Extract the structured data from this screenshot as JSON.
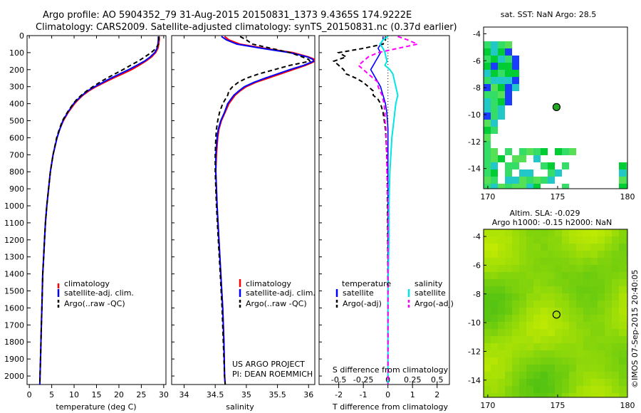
{
  "titles": {
    "line1": "Argo profile: AO 5904352_79 31-Aug-2015 20150831_1373 9.4365S 174.9222E",
    "line2": "Climatology: CARS2009. Satellite-adjusted climatology: synTS_20150831.nc (0.37d earlier)"
  },
  "annotations": {
    "project": "US ARGO PROJECT",
    "pi": "PI: DEAN ROEMMICH",
    "copyright": "©IMOS 07-Sep-2015 20:40:05"
  },
  "colors": {
    "climatology": "#ff0000",
    "satellite": "#0000ff",
    "argo": "#000000",
    "s_satellite": "#00e5e5",
    "s_argo": "#ff00ff"
  },
  "depth_axis": {
    "range": [
      0,
      2050
    ],
    "ticks": [
      0,
      100,
      200,
      300,
      400,
      500,
      600,
      700,
      800,
      900,
      1000,
      1100,
      1200,
      1300,
      1400,
      1500,
      1600,
      1700,
      1800,
      1900,
      2000
    ]
  },
  "chart_data": [
    {
      "type": "line",
      "title": "temperature profile",
      "xlabel": "temperature (deg C)",
      "xlim": [
        -0.5,
        30.5
      ],
      "ylim": [
        0,
        2050
      ],
      "xticks": [
        0,
        5,
        10,
        15,
        20,
        25,
        30
      ],
      "legend": [
        "climatology",
        "satellite-adj. clim.",
        "Argo(..raw -QC)"
      ],
      "depth": [
        5,
        25,
        50,
        75,
        100,
        125,
        150,
        175,
        200,
        225,
        250,
        275,
        300,
        325,
        350,
        375,
        400,
        450,
        500,
        550,
        600,
        700,
        800,
        900,
        1000,
        1100,
        1200,
        1300,
        1400,
        1500,
        1600,
        1700,
        1800,
        1900,
        2000,
        2050
      ],
      "series": [
        {
          "name": "climatology",
          "values": [
            29.0,
            29.0,
            28.9,
            28.7,
            28.2,
            27.3,
            26.0,
            24.5,
            22.8,
            20.8,
            18.7,
            16.8,
            14.9,
            13.3,
            12.0,
            11.0,
            10.1,
            8.7,
            7.6,
            6.8,
            6.2,
            5.3,
            4.7,
            4.3,
            3.9,
            3.6,
            3.4,
            3.2,
            3.0,
            2.9,
            2.8,
            2.7,
            2.6,
            2.5,
            2.4,
            2.35
          ]
        },
        {
          "name": "satellite-adj. clim.",
          "values": [
            28.8,
            28.8,
            28.7,
            28.5,
            28.0,
            27.0,
            25.7,
            24.0,
            22.2,
            20.2,
            18.2,
            16.4,
            14.6,
            13.0,
            11.8,
            10.8,
            9.9,
            8.6,
            7.5,
            6.8,
            6.2,
            5.3,
            4.7,
            4.3,
            3.9,
            3.6,
            3.4,
            3.2,
            3.0,
            2.9,
            2.8,
            2.7,
            2.6,
            2.5,
            2.4,
            2.35
          ]
        },
        {
          "name": "Argo(..raw -QC)",
          "values": [
            28.9,
            28.9,
            28.8,
            28.3,
            27.2,
            25.8,
            24.3,
            22.6,
            20.9,
            19.1,
            17.3,
            15.7,
            14.2,
            12.8,
            11.6,
            10.6,
            9.8,
            8.5,
            7.4,
            6.7,
            6.1,
            5.3,
            4.7,
            4.3,
            3.9,
            3.6,
            3.4,
            3.2,
            3.0,
            2.9,
            2.8,
            2.7,
            2.6,
            2.5,
            2.4,
            2.35
          ]
        }
      ]
    },
    {
      "type": "line",
      "title": "salinity profile",
      "xlabel": "salinity",
      "xlim": [
        33.8,
        36.1
      ],
      "ylim": [
        0,
        2050
      ],
      "xticks": [
        34,
        34.5,
        35,
        35.5,
        36
      ],
      "legend": [
        "climatology",
        "satellite-adj. clim.",
        "Argo(..raw -QC)"
      ],
      "depth": [
        5,
        25,
        50,
        75,
        100,
        125,
        140,
        150,
        160,
        175,
        200,
        225,
        250,
        275,
        300,
        325,
        350,
        375,
        400,
        450,
        500,
        550,
        600,
        700,
        800,
        900,
        1000,
        1200,
        1400,
        1600,
        1800,
        2000,
        2050
      ],
      "series": [
        {
          "name": "climatology",
          "values": [
            34.65,
            34.72,
            34.9,
            35.3,
            35.75,
            36.0,
            36.1,
            36.1,
            36.05,
            35.95,
            35.75,
            35.55,
            35.35,
            35.15,
            35.0,
            34.9,
            34.82,
            34.77,
            34.72,
            34.66,
            34.6,
            34.56,
            34.54,
            34.52,
            34.51,
            34.52,
            34.53,
            34.56,
            34.59,
            34.62,
            34.64,
            34.65,
            34.66
          ]
        },
        {
          "name": "satellite-adj. clim.",
          "values": [
            34.6,
            34.68,
            34.85,
            35.25,
            35.7,
            35.98,
            36.07,
            36.08,
            36.02,
            35.92,
            35.7,
            35.5,
            35.3,
            35.12,
            34.97,
            34.88,
            34.8,
            34.75,
            34.7,
            34.65,
            34.59,
            34.55,
            34.53,
            34.51,
            34.51,
            34.52,
            34.53,
            34.56,
            34.59,
            34.62,
            34.64,
            34.65,
            34.66
          ]
        },
        {
          "name": "Argo(..raw -QC)",
          "values": [
            34.9,
            35.0,
            35.1,
            35.4,
            35.7,
            35.9,
            36.0,
            36.02,
            35.9,
            35.7,
            35.45,
            35.2,
            35.0,
            34.87,
            34.78,
            34.72,
            34.7,
            34.66,
            34.62,
            34.57,
            34.54,
            34.52,
            34.51,
            34.5,
            34.5,
            34.51,
            34.52,
            34.55,
            34.58,
            34.61,
            34.63,
            34.65,
            34.66
          ]
        }
      ]
    },
    {
      "type": "line",
      "title": "difference from climatology",
      "xlabel": "T difference from climatology",
      "s_axis_label": "S difference from climatology",
      "xlim": [
        -2.8,
        2.5
      ],
      "ylim": [
        0,
        2050
      ],
      "xticks": [
        -2,
        -1,
        0,
        1,
        2
      ],
      "s_xlim": [
        -0.7,
        0.625
      ],
      "s_xticks": [
        -0.5,
        -0.25,
        0,
        0.25,
        0.5
      ],
      "s_xticklabels": [
        "-0.5",
        "-0.25",
        "0",
        "0.25",
        "0.5"
      ],
      "legend_headers": [
        "temperature",
        "salinity"
      ],
      "legend": [
        "satellite",
        "Argo(-adj)",
        "satellite",
        "Argo(-adj)"
      ],
      "depth": [
        5,
        25,
        50,
        75,
        100,
        125,
        150,
        175,
        200,
        225,
        250,
        275,
        300,
        325,
        350,
        375,
        400,
        450,
        500,
        550,
        600,
        700,
        800,
        1000,
        1200,
        1500,
        2000,
        2050
      ],
      "series": [
        {
          "name": "T satellite",
          "axis": "T",
          "values": [
            -0.2,
            -0.2,
            -0.3,
            -0.4,
            -0.3,
            -0.4,
            -0.5,
            -0.6,
            -0.7,
            -0.6,
            -0.5,
            -0.4,
            -0.3,
            -0.25,
            -0.2,
            -0.15,
            -0.1,
            -0.05,
            -0.02,
            0,
            0,
            0,
            0,
            0,
            0,
            0,
            0,
            0
          ]
        },
        {
          "name": "T Argo(-adj)",
          "axis": "T",
          "values": [
            -0.1,
            -0.1,
            -0.2,
            -1.0,
            -2.0,
            -1.7,
            -2.2,
            -2.0,
            -1.8,
            -1.7,
            -1.3,
            -1.0,
            -0.8,
            -0.6,
            -0.6,
            -0.4,
            -0.3,
            -0.2,
            -0.15,
            -0.1,
            -0.08,
            -0.05,
            -0.03,
            -0.02,
            -0.01,
            0,
            0,
            0
          ]
        },
        {
          "name": "S satellite",
          "axis": "S",
          "values": [
            0.0,
            -0.05,
            -0.08,
            -0.05,
            -0.03,
            -0.02,
            -0.01,
            -0.03,
            0.02,
            0.05,
            0.06,
            0.07,
            0.08,
            0.09,
            0.1,
            0.09,
            0.08,
            0.07,
            0.06,
            0.05,
            0.04,
            0.03,
            0.02,
            0.01,
            0.01,
            0,
            0,
            0
          ]
        },
        {
          "name": "S Argo(-adj)",
          "axis": "S",
          "values": [
            0.1,
            0.2,
            0.3,
            0.1,
            -0.1,
            -0.2,
            -0.25,
            -0.3,
            -0.25,
            -0.2,
            -0.15,
            -0.1,
            -0.1,
            -0.08,
            -0.06,
            -0.05,
            -0.04,
            -0.03,
            -0.03,
            -0.02,
            -0.02,
            -0.01,
            -0.01,
            0,
            0,
            0,
            0,
            0
          ]
        }
      ]
    }
  ],
  "maps": {
    "sst": {
      "title": "sat. SST: NaN Argo: 28.5",
      "lon_range": [
        169.7,
        180.0
      ],
      "lat_range": [
        -15.5,
        -3.5
      ],
      "xticks": [
        170,
        175,
        180
      ],
      "yticks": [
        -4,
        -6,
        -8,
        -10,
        -12,
        -14
      ],
      "argo_position": {
        "lon": 174.92,
        "lat": -9.44
      }
    },
    "sla": {
      "title_line1": "Altim. SLA: -0.029",
      "title_line2": "Argo h1000: -0.15 h2000: NaN",
      "lon_range": [
        169.7,
        180.0
      ],
      "lat_range": [
        -15.2,
        -3.5
      ],
      "xticks": [
        170,
        175,
        180
      ],
      "yticks": [
        -4,
        -6,
        -8,
        -10,
        -12,
        -14
      ],
      "argo_position": {
        "lon": 174.92,
        "lat": -9.44
      }
    }
  }
}
